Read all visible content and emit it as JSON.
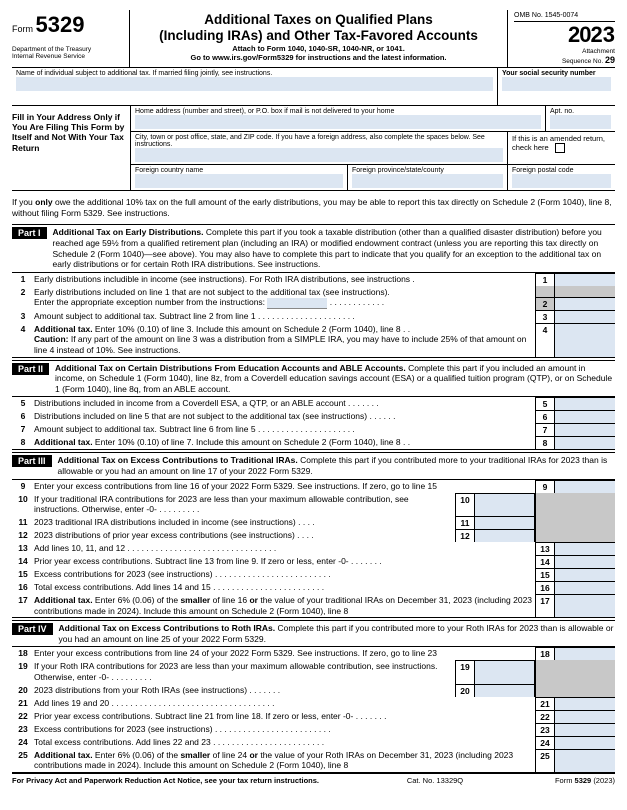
{
  "header": {
    "form_word": "Form",
    "form_number": "5329",
    "dept1": "Department of the Treasury",
    "dept2": "Internal Revenue Service",
    "title1": "Additional Taxes on Qualified Plans",
    "title2": "(Including IRAs) and Other Tax-Favored Accounts",
    "attach": "Attach to Form 1040, 1040-SR, 1040-NR, or 1041.",
    "goto": "Go to www.irs.gov/Form5329 for instructions and the latest information.",
    "omb": "OMB No. 1545-0074",
    "year_a": "20",
    "year_b": "23",
    "seq_label": "Attachment",
    "seq_text": "Sequence No.",
    "seq_num": "29"
  },
  "name_row": {
    "name_label": "Name of individual subject to additional tax. If married filing jointly, see instructions.",
    "ssn_label": "Your social security number"
  },
  "addr": {
    "fill_label": "Fill in Your Address Only if You Are Filing This Form by Itself and Not With Your Tax Return",
    "home": "Home address (number and street), or P.O. box if mail is not delivered to your home",
    "apt": "Apt. no.",
    "city": "City, town or post office, state, and ZIP code. If you have a foreign address, also complete the spaces below. See instructions.",
    "amended": "If this is an amended return, check here",
    "fcn": "Foreign country name",
    "fpsc": "Foreign province/state/county",
    "fpc": "Foreign postal code"
  },
  "note1": "If you only owe the additional 10% tax on the full amount of the early distributions, you may be able to report this tax directly on Schedule 2 (Form 1040), line 8, without filing Form 5329. See instructions.",
  "parts": {
    "p1_label": "Part I",
    "p1_title": "Additional Tax on Early Distributions.",
    "p1_text": " Complete this part if you took a taxable distribution (other than a qualified disaster distribution) before you reached age 59½ from a qualified retirement plan (including an IRA) or modified endowment contract (unless you are reporting this tax directly on Schedule 2 (Form 1040)—see above). You may also have to complete this part to indicate that you qualify for an exception to the additional tax on early distributions or for certain Roth IRA distributions. See instructions.",
    "p2_label": "Part II",
    "p2_title": "Additional Tax on Certain Distributions From Education Accounts and ABLE Accounts.",
    "p2_text": " Complete this part if you included an amount in income, on Schedule 1 (Form 1040), line 8z, from a Coverdell education savings account (ESA) or a qualified tuition program (QTP), or on Schedule 1 (Form 1040), line 8q, from an ABLE account.",
    "p3_label": "Part III",
    "p3_title": "Additional Tax on Excess Contributions to Traditional IRAs.",
    "p3_text": " Complete this part if you contributed more to your traditional IRAs for 2023 than is allowable or you had an amount on line 17 of your 2022 Form 5329.",
    "p4_label": "Part IV",
    "p4_title": "Additional Tax on Excess Contributions to Roth IRAs.",
    "p4_text": " Complete this part if you contributed more to your Roth IRAs for 2023 than is allowable or you had an amount on line 25 of your 2022 Form 5329."
  },
  "lines": {
    "l1": "Early distributions includible in income (see instructions). For Roth IRA distributions, see instructions .",
    "l2a": "Early distributions included on line 1 that are not subject to the additional tax (see instructions).",
    "l2b": "Enter the appropriate exception number from the instructions:",
    "l3": "Amount subject to additional tax. Subtract line 2 from line 1",
    "l4a": "Additional tax.",
    "l4b": " Enter 10% (0.10) of line 3. Include this amount on Schedule 2 (Form 1040), line 8 .",
    "l4c": "Caution:",
    "l4d": " If any part of the amount on line 3 was a distribution from a SIMPLE IRA, you may have to include 25% of that amount on line 4 instead of 10%. See instructions.",
    "l5": "Distributions included in income from a Coverdell ESA, a QTP, or an ABLE account",
    "l6": "Distributions included on line 5 that are not subject to the additional tax (see instructions)",
    "l7": "Amount subject to additional tax. Subtract line 6 from line 5",
    "l8a": "Additional tax.",
    "l8b": " Enter 10% (0.10) of line 7. Include this amount on Schedule 2 (Form 1040), line 8",
    "l9": "Enter your excess contributions from line 16 of your 2022 Form 5329. See instructions. If zero, go to line 15",
    "l10": "If your traditional IRA contributions for 2023 are less than your maximum allowable contribution, see instructions. Otherwise, enter -0-",
    "l11": "2023 traditional IRA distributions included in income (see instructions) .",
    "l12": "2023 distributions of prior year excess contributions (see instructions) .",
    "l13": "Add lines 10, 11, and 12",
    "l14": "Prior year excess contributions. Subtract line 13 from line 9. If zero or less, enter -0-",
    "l15": "Excess contributions for 2023 (see instructions)",
    "l16": "Total excess contributions. Add lines 14 and 15",
    "l17a": "Additional tax.",
    "l17b": " Enter 6% (0.06) of the smaller of line 16 or the value of your traditional IRAs on December 31, 2023 (including 2023 contributions made in 2024). Include this amount on Schedule 2 (Form 1040), line 8",
    "l18": "Enter your excess contributions from line 24 of your 2022 Form 5329. See instructions. If zero, go to line 23",
    "l19": "If your Roth IRA contributions for 2023 are less than your maximum allowable contribution, see instructions. Otherwise, enter -0-",
    "l20": "2023 distributions from your Roth IRAs (see instructions)",
    "l21": "Add lines 19 and 20",
    "l22": "Prior year excess contributions. Subtract line 21 from line 18. If zero or less, enter -0-",
    "l23": "Excess contributions for 2023 (see instructions)",
    "l24": "Total excess contributions. Add lines 22 and 23",
    "l25a": "Additional tax.",
    "l25b": " Enter 6% (0.06) of the smaller of line 24 or the value of your Roth IRAs on December 31, 2023 (including 2023 contributions made in 2024). Include this amount on Schedule 2 (Form 1040), line 8"
  },
  "footer": {
    "left": "For Privacy Act and Paperwork Reduction Act Notice, see your tax return instructions.",
    "mid": "Cat. No. 13329Q",
    "right_a": "Form",
    "right_b": "5329",
    "right_c": "(2023)"
  }
}
